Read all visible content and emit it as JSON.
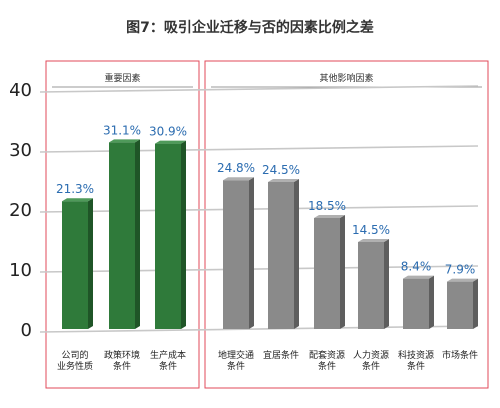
{
  "chart_data": {
    "type": "bar",
    "title": "图7：吸引企业迁移与否的因素比例之差",
    "ylim": [
      0,
      40
    ],
    "yticks": [
      0,
      10,
      20,
      30,
      40
    ],
    "grid": true,
    "groups": [
      {
        "label": "重要因素",
        "categories": [
          "公司的业务性质",
          "政策环境条件",
          "生产成本条件"
        ]
      },
      {
        "label": "其他影响因素",
        "categories": [
          "地理交通条件",
          "宜居条件",
          "配套资源条件",
          "人力资源条件",
          "科技资源条件",
          "市场条件"
        ]
      }
    ],
    "categories": [
      [
        "公司的",
        "业务性质"
      ],
      [
        "政策环境",
        "条件"
      ],
      [
        "生产成本",
        "条件"
      ],
      [
        "地理交通",
        "条件"
      ],
      [
        "宜居条件"
      ],
      [
        "配套资源",
        "条件"
      ],
      [
        "人力资源",
        "条件"
      ],
      [
        "科技资源",
        "条件"
      ],
      [
        "市场条件"
      ]
    ],
    "values": [
      21.3,
      31.1,
      30.9,
      24.8,
      24.5,
      18.5,
      14.5,
      8.4,
      7.9
    ],
    "value_labels": [
      "21.3%",
      "31.1%",
      "30.9%",
      "24.8%",
      "24.5%",
      "18.5%",
      "14.5%",
      "8.4%",
      "7.9%"
    ],
    "colors": {
      "important_bar": "#2f7a3a",
      "other_bar": "#8a8a8a",
      "value_label": "#2b6cb0",
      "group_box": "#e24a5a",
      "grid": "#c8c8c8"
    }
  }
}
